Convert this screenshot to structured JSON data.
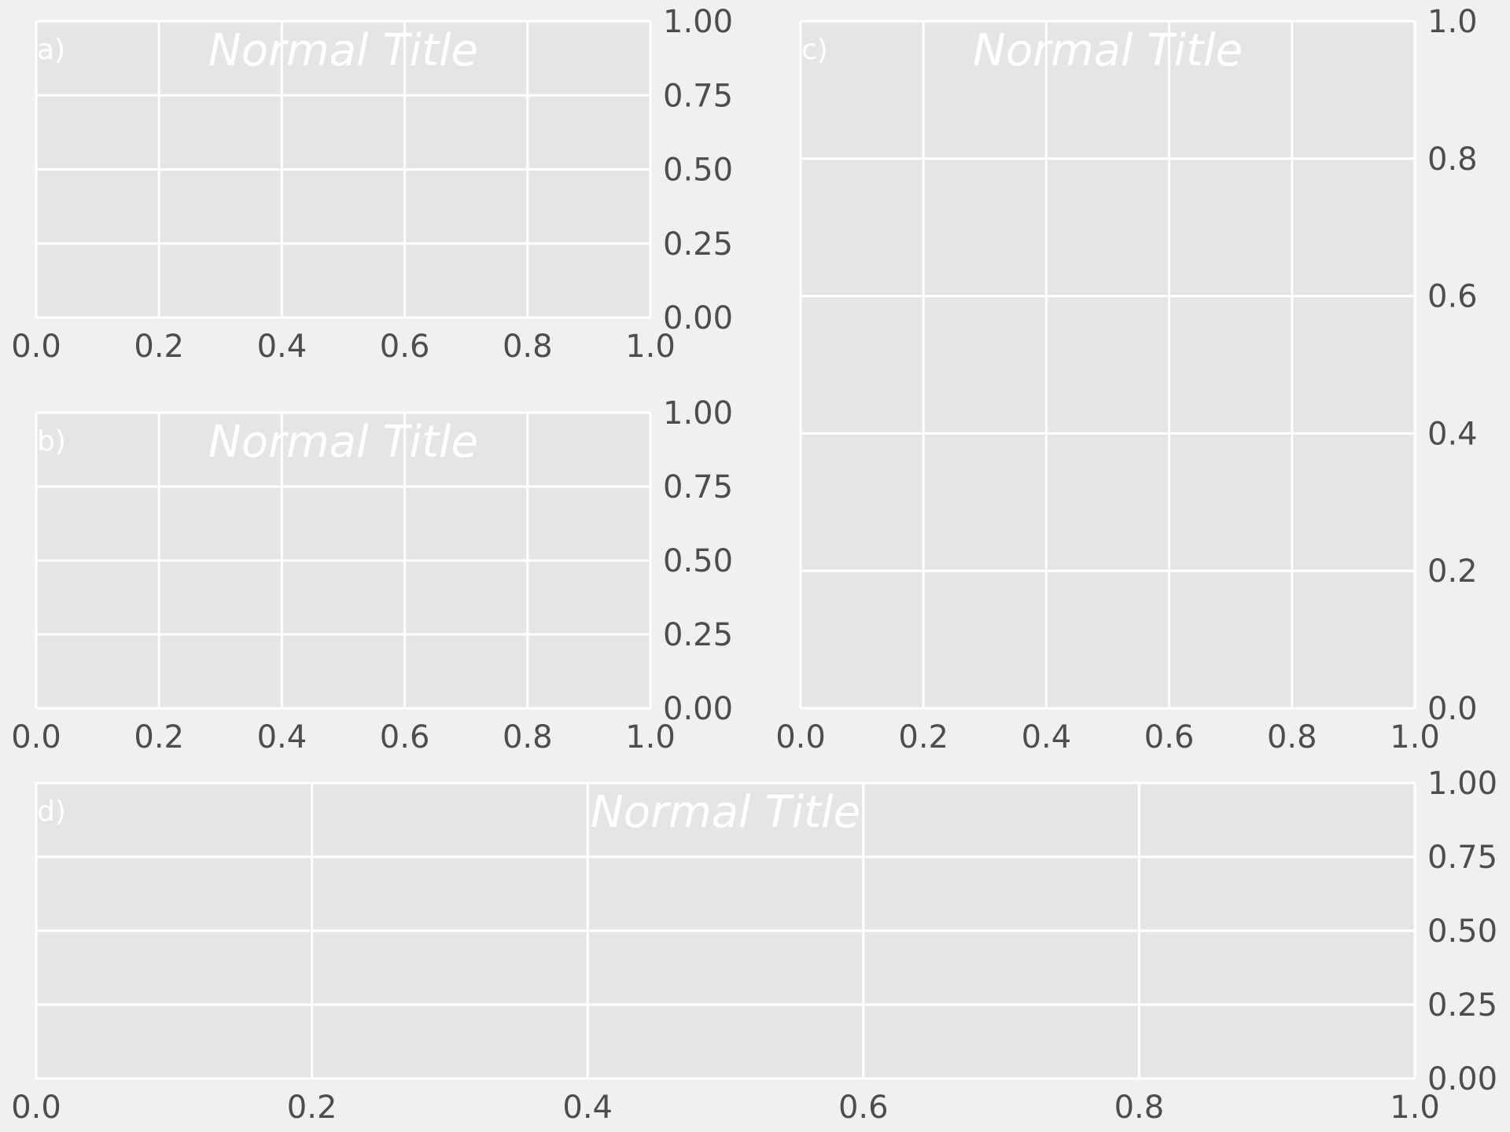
{
  "colors": {
    "figure_background": "#f0f0f0",
    "axes_background": "#e5e5e5",
    "grid": "#ffffff",
    "tick_label": "#4d4d4d",
    "title_text": "#ffffff"
  },
  "chart_data": [
    {
      "panel": "a",
      "label": "a)",
      "type": "line",
      "title": "Normal Title",
      "title_style": "italic",
      "series": [],
      "xlim": [
        0,
        1
      ],
      "ylim": [
        0,
        1
      ],
      "x_ticks": [
        "0.0",
        "0.2",
        "0.4",
        "0.6",
        "0.8",
        "1.0"
      ],
      "y_ticks": [
        "0.00",
        "0.25",
        "0.50",
        "0.75",
        "1.00"
      ],
      "y_axis_side": "right",
      "grid": true
    },
    {
      "panel": "b",
      "label": "b)",
      "type": "line",
      "title": "Normal Title",
      "title_style": "italic",
      "series": [],
      "xlim": [
        0,
        1
      ],
      "ylim": [
        0,
        1
      ],
      "x_ticks": [
        "0.0",
        "0.2",
        "0.4",
        "0.6",
        "0.8",
        "1.0"
      ],
      "y_ticks": [
        "0.00",
        "0.25",
        "0.50",
        "0.75",
        "1.00"
      ],
      "y_axis_side": "right",
      "grid": true
    },
    {
      "panel": "c",
      "label": "c)",
      "type": "line",
      "title": "Normal Title",
      "title_style": "italic",
      "series": [],
      "xlim": [
        0,
        1
      ],
      "ylim": [
        0,
        1
      ],
      "x_ticks": [
        "0.0",
        "0.2",
        "0.4",
        "0.6",
        "0.8",
        "1.0"
      ],
      "y_ticks": [
        "0.0",
        "0.2",
        "0.4",
        "0.6",
        "0.8",
        "1.0"
      ],
      "y_axis_side": "right",
      "grid": true
    },
    {
      "panel": "d",
      "label": "d)",
      "type": "line",
      "title": "Normal Title",
      "title_style": "italic",
      "series": [],
      "xlim": [
        0,
        1
      ],
      "ylim": [
        0,
        1
      ],
      "x_ticks": [
        "0.0",
        "0.2",
        "0.4",
        "0.6",
        "0.8",
        "1.0"
      ],
      "y_ticks": [
        "0.00",
        "0.25",
        "0.50",
        "0.75",
        "1.00"
      ],
      "y_axis_side": "right",
      "grid": true
    }
  ]
}
